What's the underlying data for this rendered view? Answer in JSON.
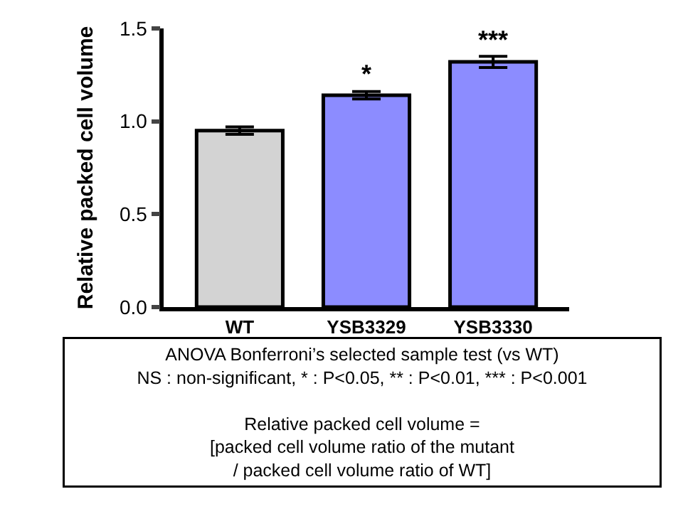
{
  "chart_data": {
    "type": "bar",
    "ylabel": "Relative packed cell volume",
    "categories": [
      "WT",
      "YSB3329",
      "YSB3330"
    ],
    "values": [
      0.95,
      1.14,
      1.32
    ],
    "errors": [
      0.02,
      0.02,
      0.03
    ],
    "colors": [
      "#d3d3d3",
      "#8c8cff",
      "#8c8cff"
    ],
    "ylim": [
      0,
      1.5
    ],
    "yticks": [
      {
        "value": 0,
        "label": "0.0"
      },
      {
        "value": 0.5,
        "label": "0.5"
      },
      {
        "value": 1,
        "label": "1.0"
      },
      {
        "value": 1.5,
        "label": "1.5"
      }
    ],
    "annotations": [
      {
        "text": "*",
        "x": "YSB3329",
        "y": 1.16
      },
      {
        "text": "***",
        "x": "YSB3330",
        "y": 1.35
      },
      "ANOVA Bonferroni’s selected sample test (vs WT)\nNS : non-significant, * : P<0.05, ** : P<0.01, *** : P<0.001",
      "Relative packed cell volume =\n[packed cell volume ratio of the mutant\n/ packed cell volume ratio of WT]"
    ]
  }
}
